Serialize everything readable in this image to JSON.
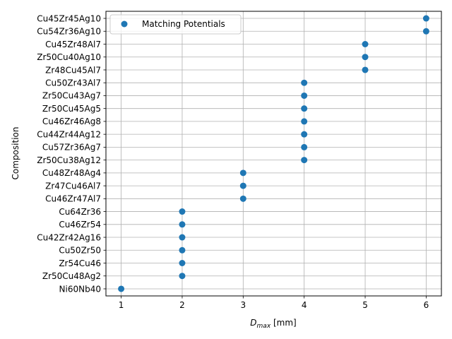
{
  "chart_data": {
    "type": "scatter",
    "xlabel_main": "D",
    "xlabel_sub": "max",
    "xlabel_unit": " [mm]",
    "ylabel": "Composition",
    "xlim": [
      0.75,
      6.25
    ],
    "xticks": [
      "1",
      "2",
      "3",
      "4",
      "5",
      "6"
    ],
    "grid": true,
    "legend_position": "upper-left",
    "marker_color": "#1f77b4",
    "series": [
      {
        "name": "Matching Potentials",
        "points": [
          {
            "y": "Ni60Nb40",
            "x": 1
          },
          {
            "y": "Zr50Cu48Ag2",
            "x": 2
          },
          {
            "y": "Zr54Cu46",
            "x": 2
          },
          {
            "y": "Cu50Zr50",
            "x": 2
          },
          {
            "y": "Cu42Zr42Ag16",
            "x": 2
          },
          {
            "y": "Cu46Zr54",
            "x": 2
          },
          {
            "y": "Cu64Zr36",
            "x": 2
          },
          {
            "y": "Cu46Zr47Al7",
            "x": 3
          },
          {
            "y": "Zr47Cu46Al7",
            "x": 3
          },
          {
            "y": "Cu48Zr48Ag4",
            "x": 3
          },
          {
            "y": "Zr50Cu38Ag12",
            "x": 4
          },
          {
            "y": "Cu57Zr36Ag7",
            "x": 4
          },
          {
            "y": "Cu44Zr44Ag12",
            "x": 4
          },
          {
            "y": "Cu46Zr46Ag8",
            "x": 4
          },
          {
            "y": "Zr50Cu45Ag5",
            "x": 4
          },
          {
            "y": "Zr50Cu43Ag7",
            "x": 4
          },
          {
            "y": "Cu50Zr43Al7",
            "x": 4
          },
          {
            "y": "Zr48Cu45Al7",
            "x": 5
          },
          {
            "y": "Zr50Cu40Ag10",
            "x": 5
          },
          {
            "y": "Cu45Zr48Al7",
            "x": 5
          },
          {
            "y": "Cu54Zr36Ag10",
            "x": 6
          },
          {
            "y": "Cu45Zr45Ag10",
            "x": 6
          }
        ]
      }
    ]
  }
}
